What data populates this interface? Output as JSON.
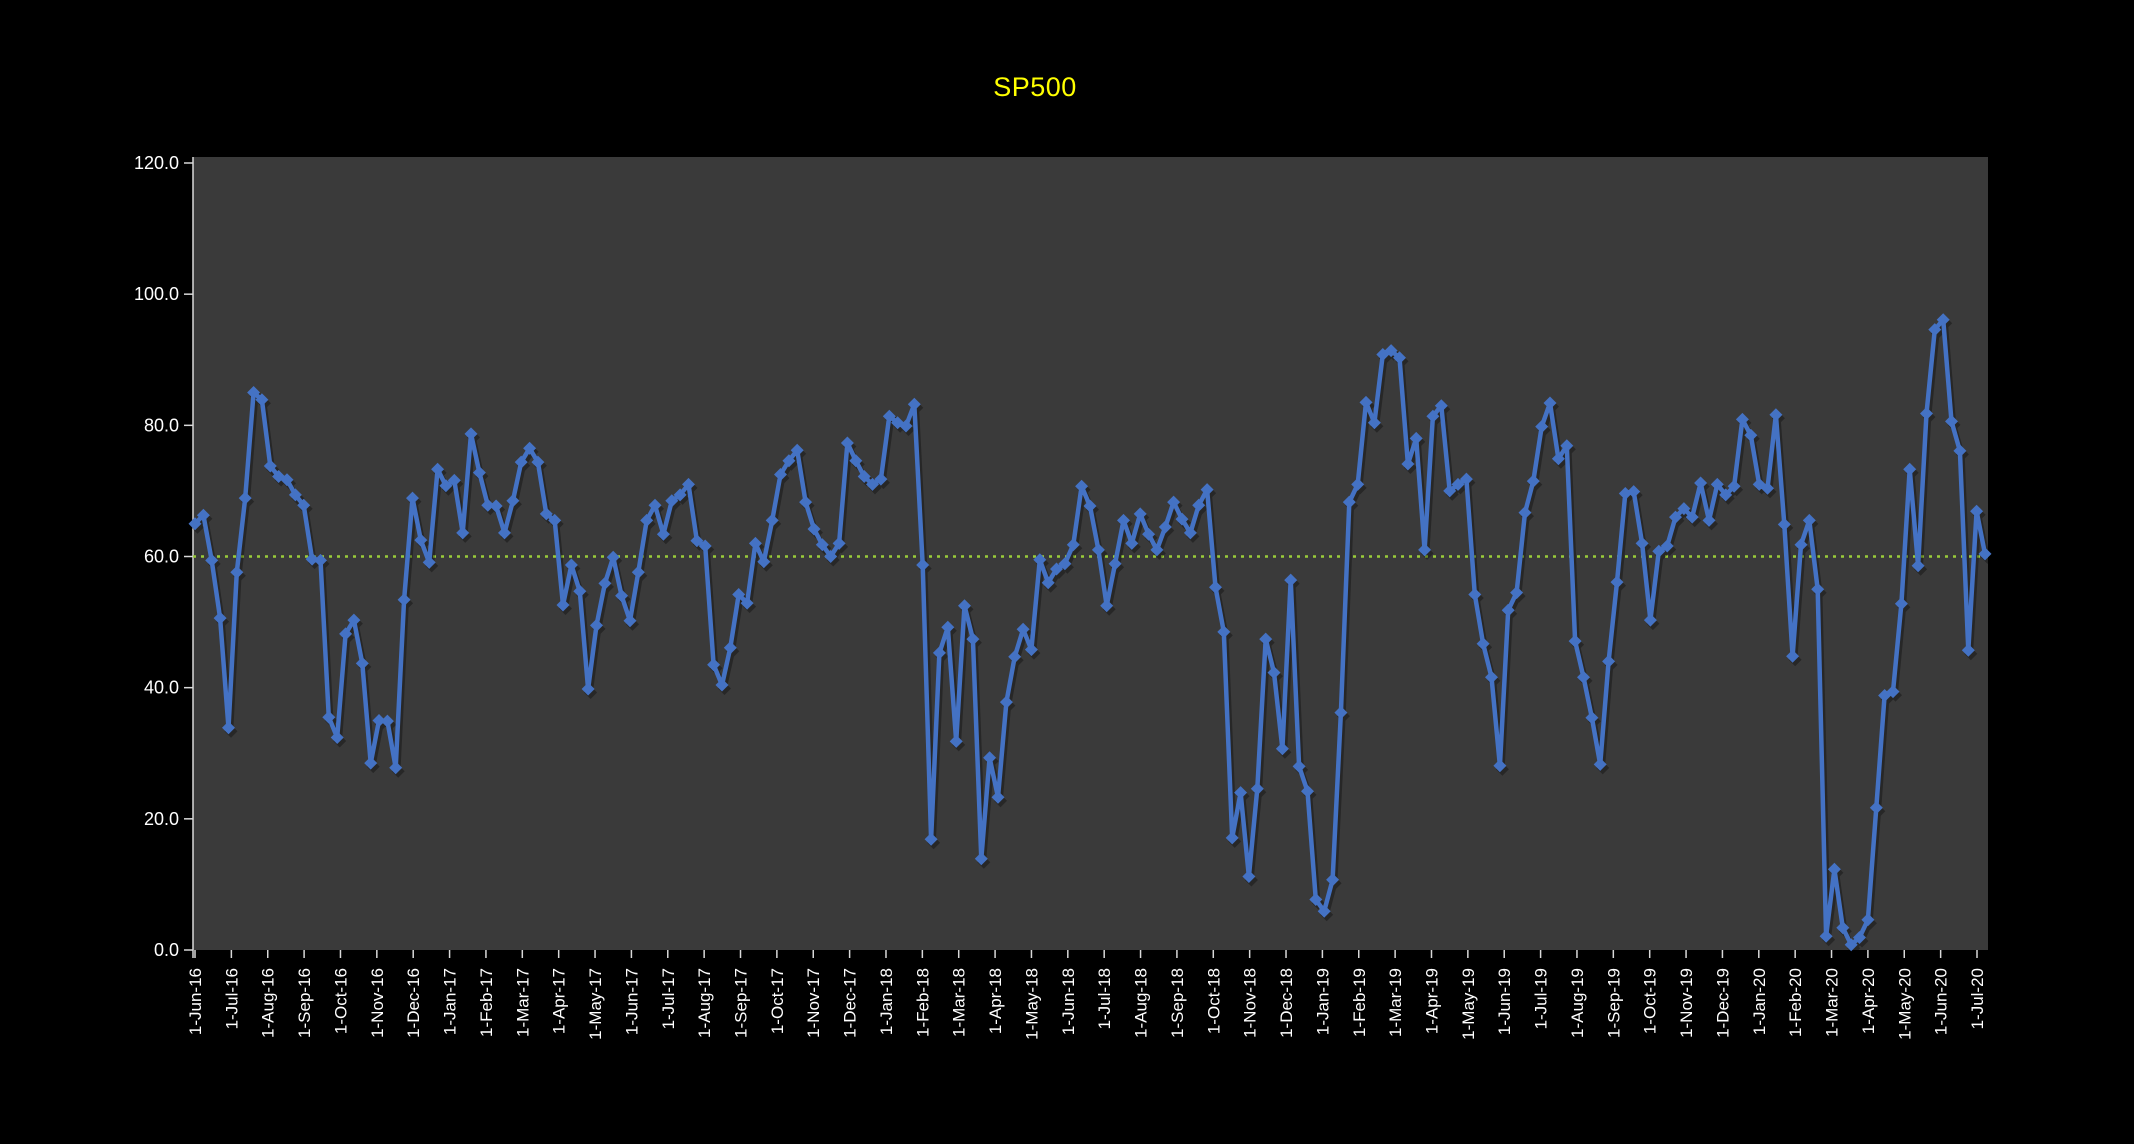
{
  "title": {
    "text": "SP500",
    "color": "#FFFF00"
  },
  "chart_data": {
    "type": "line",
    "series": [
      {
        "name": "SP500",
        "start_date": "2016-06-01",
        "interval": "weekly",
        "values": [
          65.0,
          66.3,
          59.4,
          50.6,
          33.9,
          57.6,
          68.9,
          85.0,
          83.9,
          73.8,
          72.2,
          71.7,
          69.4,
          67.8,
          59.6,
          59.4,
          35.5,
          32.4,
          48.2,
          50.3,
          43.7,
          28.5,
          35.0,
          34.9,
          27.8,
          53.4,
          68.9,
          62.5,
          59.1,
          73.3,
          70.8,
          71.6,
          63.6,
          78.7,
          72.8,
          67.8,
          67.7,
          63.6,
          68.5,
          74.4,
          76.5,
          74.4,
          66.5,
          65.5,
          52.6,
          58.7,
          54.7,
          39.8,
          49.5,
          55.9,
          59.9,
          54.0,
          50.2,
          57.6,
          65.5,
          67.8,
          63.4,
          68.5,
          69.4,
          71.0,
          62.4,
          61.6,
          43.5,
          40.4,
          46.1,
          54.2,
          52.9,
          62.0,
          59.2,
          65.5,
          72.5,
          74.6,
          76.2,
          68.3,
          64.2,
          61.8,
          60.0,
          62.0,
          77.3,
          74.6,
          72.2,
          71.0,
          71.8,
          81.4,
          80.4,
          79.9,
          83.2,
          58.7,
          16.9,
          45.3,
          49.2,
          31.8,
          52.5,
          47.4,
          13.9,
          29.3,
          23.3,
          37.8,
          44.7,
          48.9,
          45.8,
          59.5,
          56.0,
          58.1,
          58.9,
          61.8,
          70.7,
          67.7,
          61.0,
          52.5,
          58.9,
          65.5,
          62.0,
          66.5,
          63.4,
          61.0,
          64.5,
          68.3,
          65.7,
          63.6,
          67.8,
          70.2,
          55.3,
          48.5,
          17.1,
          24.0,
          11.2,
          24.6,
          47.4,
          42.3,
          30.7,
          56.4,
          28.0,
          24.2,
          7.7,
          5.9,
          10.7,
          36.2,
          68.3,
          71.0,
          83.5,
          80.4,
          90.8,
          91.4,
          90.3,
          74.1,
          78.0,
          61.0,
          81.4,
          83.0,
          70.0,
          71.0,
          71.8,
          54.2,
          46.7,
          41.6,
          28.1,
          51.8,
          54.5,
          66.7,
          71.5,
          79.8,
          83.4,
          74.9,
          76.9,
          47.1,
          41.6,
          35.4,
          28.3,
          44.0,
          56.1,
          69.6,
          69.9,
          62.0,
          50.3,
          60.8,
          61.6,
          66.0,
          67.3,
          66.0,
          71.2,
          65.5,
          71.0,
          69.4,
          70.7,
          80.9,
          78.5,
          71.0,
          70.4,
          81.6,
          64.9,
          44.8,
          61.8,
          65.5,
          55.0,
          2.1,
          12.3,
          3.4,
          0.8,
          1.9,
          4.6,
          21.7,
          38.8,
          39.4,
          52.8,
          73.3,
          58.6,
          81.8,
          94.6,
          96.1,
          80.6,
          76.1,
          45.7,
          66.9,
          60.4
        ]
      }
    ],
    "x_tick_labels": [
      "1-Jun-16",
      "1-Jul-16",
      "1-Aug-16",
      "1-Sep-16",
      "1-Oct-16",
      "1-Nov-16",
      "1-Dec-16",
      "1-Jan-17",
      "1-Feb-17",
      "1-Mar-17",
      "1-Apr-17",
      "1-May-17",
      "1-Jun-17",
      "1-Jul-17",
      "1-Aug-17",
      "1-Sep-17",
      "1-Oct-17",
      "1-Nov-17",
      "1-Dec-17",
      "1-Jan-18",
      "1-Feb-18",
      "1-Mar-18",
      "1-Apr-18",
      "1-May-18",
      "1-Jun-18",
      "1-Jul-18",
      "1-Aug-18",
      "1-Sep-18",
      "1-Oct-18",
      "1-Nov-18",
      "1-Dec-18",
      "1-Jan-19",
      "1-Feb-19",
      "1-Mar-19",
      "1-Apr-19",
      "1-May-19",
      "1-Jun-19",
      "1-Jul-19",
      "1-Aug-19",
      "1-Sep-19",
      "1-Oct-19",
      "1-Nov-19",
      "1-Dec-19",
      "1-Jan-20",
      "1-Feb-20",
      "1-Mar-20",
      "1-Apr-20",
      "1-May-20",
      "1-Jun-20",
      "1-Jul-20"
    ],
    "y_ticks": [
      0,
      20,
      40,
      60,
      80,
      100,
      120
    ],
    "y_tick_labels": [
      "0.0",
      "20.0",
      "40.0",
      "60.0",
      "80.0",
      "100.0",
      "120.0"
    ],
    "ylim": [
      0,
      120
    ],
    "reference_line": {
      "value": 60,
      "style": "dotted",
      "color": "#99CC3A"
    },
    "line_color": "#4472C4",
    "marker": "diamond",
    "plot_bg": "#3A3A3A",
    "page_bg": "#000000",
    "axis_color": "#D9D9D9",
    "tick_label_color": "#FFFFFF",
    "grid": false,
    "legend": false
  }
}
